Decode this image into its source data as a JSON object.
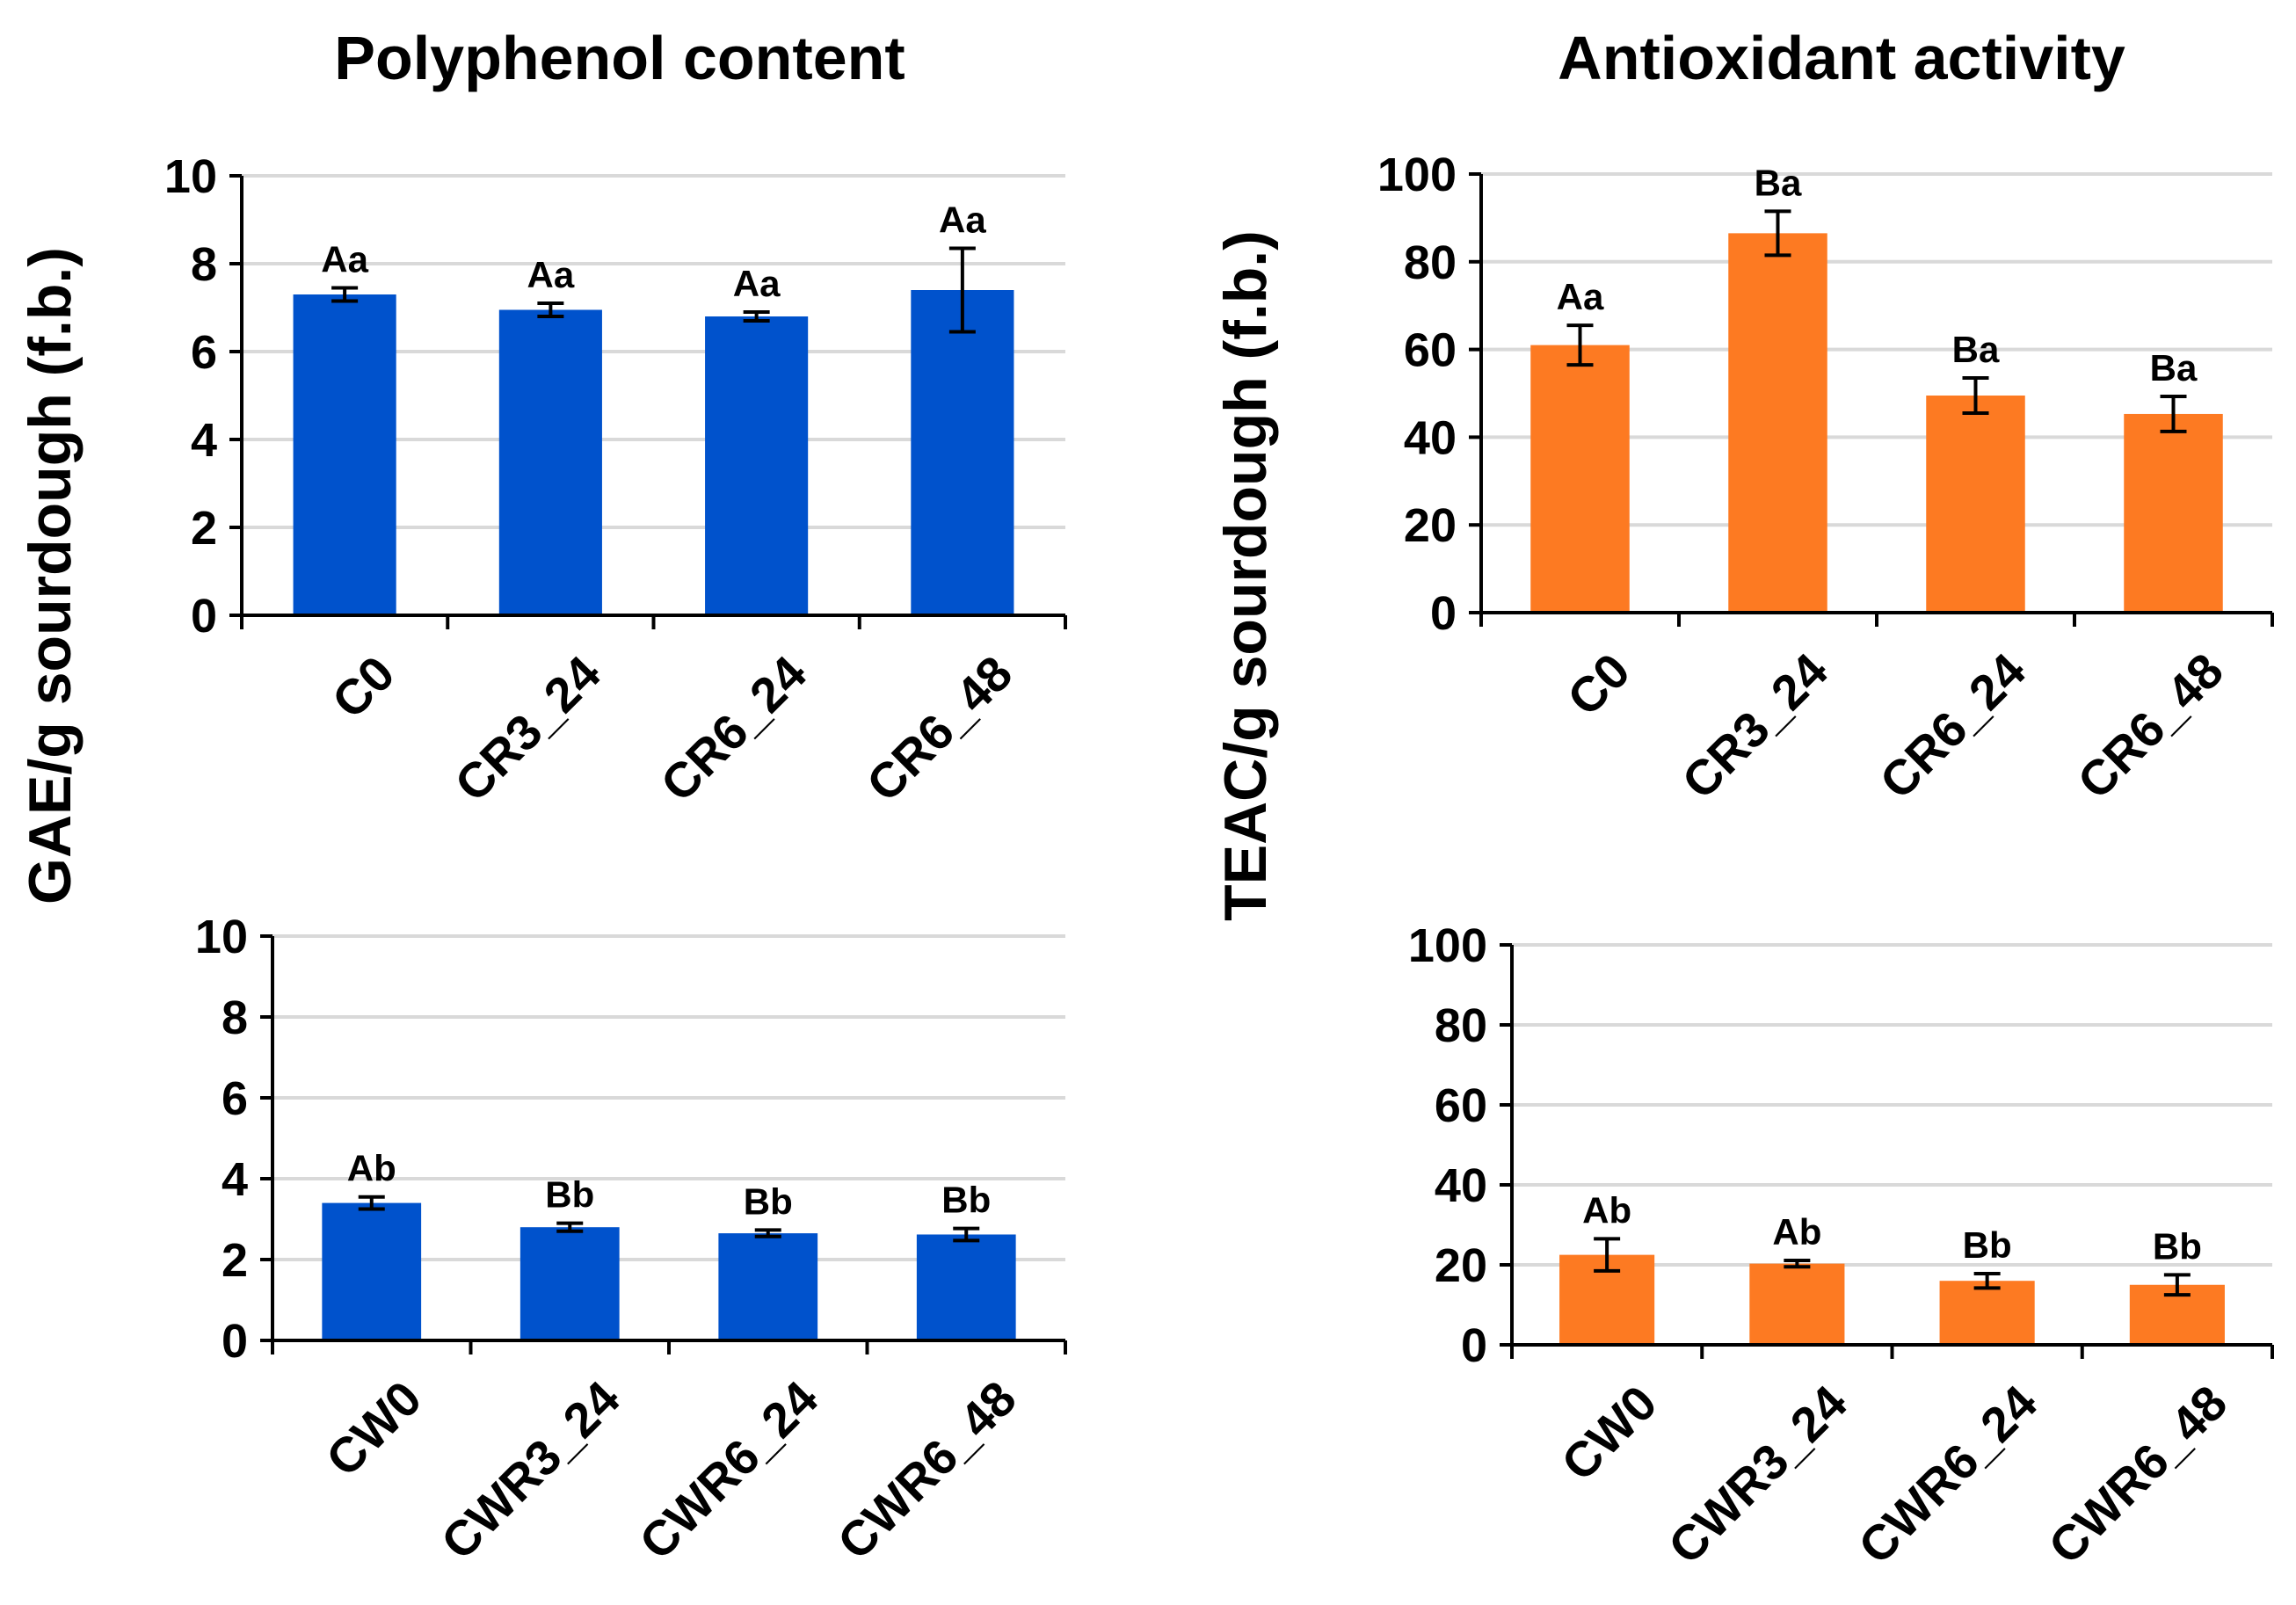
{
  "figure": {
    "column_titles": [
      "Polyphenol content",
      "Antioxidant activity"
    ],
    "row_ylabels": [
      "GAE/g sourdough (f.b.)",
      "TEAC/g sourdough (f.b.)"
    ]
  },
  "chart_data": [
    {
      "type": "bar",
      "title": "Polyphenol content",
      "ylabel": "GAE/g sourdough (f.b.)",
      "categories": [
        "C0",
        "CR3_24",
        "CR6_24",
        "CR6_48"
      ],
      "values": [
        7.3,
        6.95,
        6.8,
        7.4
      ],
      "errors": [
        0.15,
        0.15,
        0.1,
        0.95
      ],
      "labels": [
        "Aa",
        "Aa",
        "Aa",
        "Aa"
      ],
      "ylim": [
        0,
        10
      ],
      "yticks": [
        0,
        2,
        4,
        6,
        8,
        10
      ],
      "color": "#0052cc",
      "grid": true
    },
    {
      "type": "bar",
      "title": "Antioxidant activity",
      "ylabel": "TEAC/g sourdough (f.b.)",
      "categories": [
        "C0",
        "CR3_24",
        "CR6_24",
        "CR6_48"
      ],
      "values": [
        61,
        86.5,
        49.5,
        45.3
      ],
      "errors": [
        4.5,
        5,
        4,
        4
      ],
      "labels": [
        "Aa",
        "Ba",
        "Ba",
        "Ba"
      ],
      "ylim": [
        0,
        100
      ],
      "yticks": [
        0,
        20,
        40,
        60,
        80,
        100
      ],
      "color": "#fd7a22",
      "grid": true
    },
    {
      "type": "bar",
      "categories": [
        "CW0",
        "CWR3_24",
        "CWR6_24",
        "CWR6_48"
      ],
      "values": [
        3.4,
        2.8,
        2.65,
        2.62
      ],
      "errors": [
        0.15,
        0.1,
        0.08,
        0.15
      ],
      "labels": [
        "Ab",
        "Bb",
        "Bb",
        "Bb"
      ],
      "ylim": [
        0,
        10
      ],
      "yticks": [
        0,
        2,
        4,
        6,
        8,
        10
      ],
      "color": "#0052cc",
      "grid": true
    },
    {
      "type": "bar",
      "categories": [
        "CW0",
        "CWR3_24",
        "CWR6_24",
        "CWR6_48"
      ],
      "values": [
        22.5,
        20.3,
        16,
        15
      ],
      "errors": [
        4,
        0.8,
        1.8,
        2.5
      ],
      "labels": [
        "Ab",
        "Ab",
        "Bb",
        "Bb"
      ],
      "ylim": [
        0,
        100
      ],
      "yticks": [
        0,
        20,
        40,
        60,
        80,
        100
      ],
      "color": "#fd7a22",
      "grid": true
    }
  ]
}
